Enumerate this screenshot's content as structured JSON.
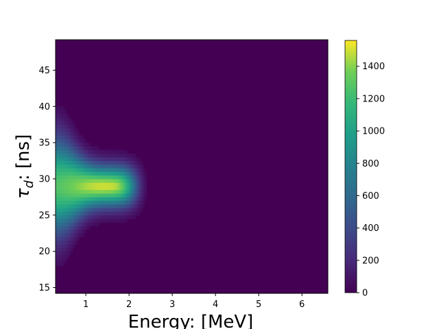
{
  "chart_data": {
    "type": "heatmap",
    "title": "",
    "xlabel": "Energy: [MeV]",
    "ylabel_math": "τ",
    "ylabel_sub": "d",
    "ylabel_rest": ": [ns]",
    "xlim": [
      0.3,
      6.6
    ],
    "ylim": [
      14.2,
      49.2
    ],
    "x_ticks": [
      1,
      2,
      3,
      4,
      5,
      6
    ],
    "y_ticks": [
      15,
      20,
      25,
      30,
      35,
      40,
      45
    ],
    "colorbar": {
      "range": [
        0,
        1560
      ],
      "ticks": [
        0,
        200,
        400,
        600,
        800,
        1000,
        1200,
        1400
      ],
      "colormap": "viridis"
    },
    "grid": false,
    "hotspot": {
      "peak_count": 1500,
      "energy_peak": 1.4,
      "tau_peak": 29,
      "energy_extent": [
        0.3,
        2.6
      ],
      "tau_extent": [
        20,
        37
      ]
    }
  }
}
